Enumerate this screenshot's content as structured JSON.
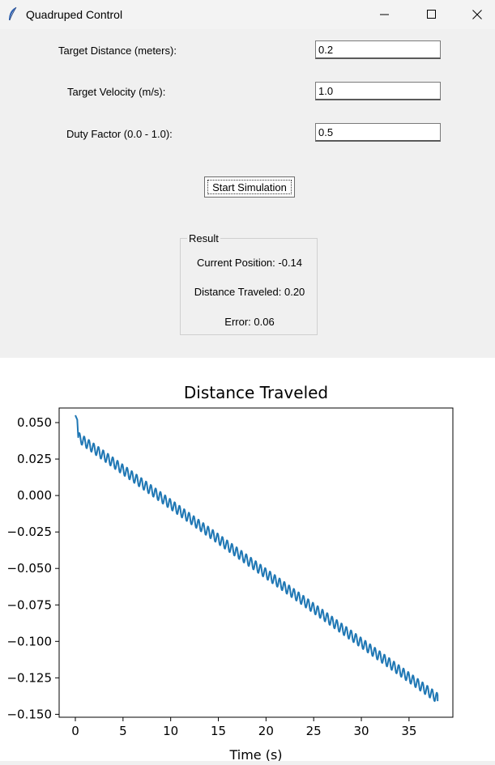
{
  "window": {
    "title": "Quadruped Control",
    "icon": "feather-icon"
  },
  "form": {
    "distance": {
      "label": "Target Distance (meters):",
      "value": "0.2"
    },
    "velocity": {
      "label": "Target Velocity (m/s):",
      "value": "1.0"
    },
    "duty": {
      "label": "Duty Factor (0.0 - 1.0):",
      "value": "0.5"
    },
    "start_label": "Start Simulation"
  },
  "result": {
    "legend": "Result",
    "position_text": "Current Position: -0.14",
    "traveled_text": "Distance Traveled: 0.20",
    "error_text": "Error: 0.06"
  },
  "chart_data": {
    "type": "line",
    "title": "Distance Traveled",
    "xlabel": "Time (s)",
    "ylabel": "",
    "xlim": [
      -1.7,
      39.6
    ],
    "ylim": [
      -0.152,
      0.06
    ],
    "x_ticks": [
      0,
      5,
      10,
      15,
      20,
      25,
      30,
      35
    ],
    "y_ticks": [
      0.05,
      0.025,
      0.0,
      -0.025,
      -0.05,
      -0.075,
      -0.1,
      -0.125,
      -0.15
    ],
    "y_tick_labels": [
      "0.050",
      "0.025",
      "0.000",
      "−0.025",
      "−0.050",
      "−0.075",
      "−0.100",
      "−0.125",
      "−0.150"
    ],
    "grid": false,
    "series": [
      {
        "color": "#1f77b4",
        "start": {
          "x": 0.0,
          "y": 0.055
        },
        "early_drop": [
          {
            "x": 0.2,
            "y": 0.052
          },
          {
            "x": 0.3,
            "y": 0.04
          }
        ],
        "trend": {
          "x0": 0.3,
          "y0": 0.04,
          "x1": 38.0,
          "y1": -0.139
        },
        "oscillation_period": 0.5,
        "oscillation_amplitude": 0.0035,
        "end": {
          "x": 38.0,
          "y": -0.141
        }
      }
    ]
  }
}
